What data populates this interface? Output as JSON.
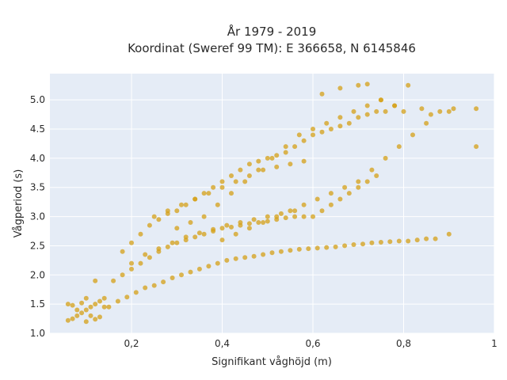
{
  "chart_data": {
    "type": "scatter",
    "title": "År 1979 - 2019",
    "subtitle": "Koordinat (Sweref 99 TM): E 366658, N 6145846",
    "xlabel": "Signifikant våghöjd (m)",
    "ylabel": "Vågperiod (s)",
    "xlim": [
      0.02,
      1.0
    ],
    "ylim": [
      1.0,
      5.45
    ],
    "x_ticks": [
      {
        "value": 0.2,
        "label": "0,2"
      },
      {
        "value": 0.4,
        "label": "0,4"
      },
      {
        "value": 0.6,
        "label": "0,6"
      },
      {
        "value": 0.8,
        "label": "0,8"
      },
      {
        "value": 1.0,
        "label": "1"
      }
    ],
    "y_ticks": [
      {
        "value": 1.0,
        "label": "1.0"
      },
      {
        "value": 1.5,
        "label": "1.5"
      },
      {
        "value": 2.0,
        "label": "2.0"
      },
      {
        "value": 2.5,
        "label": "2.5"
      },
      {
        "value": 3.0,
        "label": "3.0"
      },
      {
        "value": 3.5,
        "label": "3.5"
      },
      {
        "value": 4.0,
        "label": "4.0"
      },
      {
        "value": 4.5,
        "label": "4.5"
      },
      {
        "value": 5.0,
        "label": "5.0"
      }
    ],
    "grid": true,
    "legend": "none",
    "colors": {
      "marker": "#D4A017",
      "plot_bg": "#E5ECF6",
      "grid": "#ffffff"
    },
    "series": [
      {
        "x": [
          0.06,
          0.07,
          0.08,
          0.09,
          0.1,
          0.11,
          0.12,
          0.13,
          0.14,
          0.07,
          0.09,
          0.11,
          0.13,
          0.06,
          0.08,
          0.1,
          0.12,
          0.14,
          0.1,
          0.12,
          0.15,
          0.17,
          0.19,
          0.21,
          0.23,
          0.25,
          0.27,
          0.29,
          0.31,
          0.33,
          0.35,
          0.37,
          0.39,
          0.41,
          0.43,
          0.45,
          0.47,
          0.49,
          0.51,
          0.53,
          0.55,
          0.57,
          0.59,
          0.61,
          0.63,
          0.65,
          0.67,
          0.69,
          0.71,
          0.73,
          0.75,
          0.77,
          0.79,
          0.81,
          0.83,
          0.85,
          0.87,
          0.9,
          0.16,
          0.18,
          0.2,
          0.22,
          0.24,
          0.26,
          0.28,
          0.3,
          0.32,
          0.34,
          0.36,
          0.38,
          0.4,
          0.42,
          0.44,
          0.46,
          0.48,
          0.5,
          0.52,
          0.54,
          0.56,
          0.58,
          0.6,
          0.62,
          0.64,
          0.66,
          0.68,
          0.7,
          0.72,
          0.74,
          0.18,
          0.2,
          0.22,
          0.24,
          0.26,
          0.28,
          0.3,
          0.32,
          0.34,
          0.36,
          0.38,
          0.4,
          0.42,
          0.44,
          0.46,
          0.48,
          0.5,
          0.52,
          0.54,
          0.56,
          0.58,
          0.6,
          0.62,
          0.64,
          0.66,
          0.68,
          0.7,
          0.72,
          0.74,
          0.76,
          0.3,
          0.33,
          0.36,
          0.39,
          0.42,
          0.45,
          0.48,
          0.51,
          0.54,
          0.57,
          0.6,
          0.63,
          0.66,
          0.69,
          0.72,
          0.75,
          0.78,
          0.8,
          0.4,
          0.43,
          0.46,
          0.49,
          0.52,
          0.55,
          0.58,
          0.61,
          0.64,
          0.67,
          0.7,
          0.73,
          0.76,
          0.79,
          0.82,
          0.85,
          0.88,
          0.91,
          0.96,
          0.96,
          0.62,
          0.66,
          0.7,
          0.72,
          0.75,
          0.78,
          0.81,
          0.84,
          0.86,
          0.9,
          0.25,
          0.28,
          0.31,
          0.34,
          0.37,
          0.4,
          0.43,
          0.46,
          0.49,
          0.52,
          0.55,
          0.58,
          0.2,
          0.23,
          0.26,
          0.29,
          0.32,
          0.35,
          0.38,
          0.41,
          0.44,
          0.47,
          0.5,
          0.53,
          0.56
        ],
        "y": [
          1.22,
          1.25,
          1.3,
          1.35,
          1.4,
          1.45,
          1.5,
          1.55,
          1.6,
          1.48,
          1.52,
          1.3,
          1.28,
          1.5,
          1.4,
          1.2,
          1.24,
          1.45,
          1.6,
          1.9,
          1.45,
          1.55,
          1.62,
          1.7,
          1.78,
          1.82,
          1.88,
          1.95,
          2.0,
          2.05,
          2.1,
          2.15,
          2.2,
          2.25,
          2.28,
          2.3,
          2.32,
          2.35,
          2.38,
          2.4,
          2.42,
          2.44,
          2.45,
          2.46,
          2.47,
          2.48,
          2.5,
          2.52,
          2.53,
          2.55,
          2.56,
          2.57,
          2.58,
          2.58,
          2.6,
          2.62,
          2.62,
          2.7,
          1.9,
          2.0,
          2.1,
          2.2,
          2.3,
          2.4,
          2.48,
          2.55,
          2.6,
          2.65,
          2.7,
          2.75,
          2.8,
          2.82,
          2.85,
          2.88,
          2.9,
          2.92,
          2.95,
          2.98,
          3.0,
          3.0,
          3.0,
          3.1,
          3.2,
          3.3,
          3.4,
          3.5,
          3.6,
          3.7,
          2.4,
          2.55,
          2.7,
          2.85,
          2.95,
          3.05,
          3.1,
          3.2,
          3.3,
          3.4,
          3.5,
          3.6,
          3.7,
          3.8,
          3.9,
          3.95,
          4.0,
          4.05,
          4.1,
          4.2,
          4.3,
          4.4,
          4.45,
          4.5,
          4.55,
          4.6,
          4.7,
          4.75,
          4.8,
          4.8,
          2.8,
          2.9,
          3.0,
          3.2,
          3.4,
          3.6,
          3.8,
          4.0,
          4.2,
          4.4,
          4.5,
          4.6,
          4.7,
          4.8,
          4.9,
          5.0,
          4.9,
          4.8,
          2.6,
          2.7,
          2.8,
          2.9,
          3.0,
          3.1,
          3.2,
          3.3,
          3.4,
          3.5,
          3.6,
          3.8,
          4.0,
          4.2,
          4.4,
          4.6,
          4.8,
          4.85,
          4.85,
          4.2,
          5.1,
          5.2,
          5.25,
          5.27,
          5.0,
          4.9,
          5.25,
          4.85,
          4.75,
          4.8,
          3.0,
          3.1,
          3.2,
          3.3,
          3.4,
          3.5,
          3.6,
          3.7,
          3.8,
          3.85,
          3.9,
          3.95,
          2.2,
          2.35,
          2.45,
          2.55,
          2.65,
          2.72,
          2.78,
          2.85,
          2.9,
          2.95,
          3.0,
          3.05,
          3.1
        ]
      }
    ]
  }
}
